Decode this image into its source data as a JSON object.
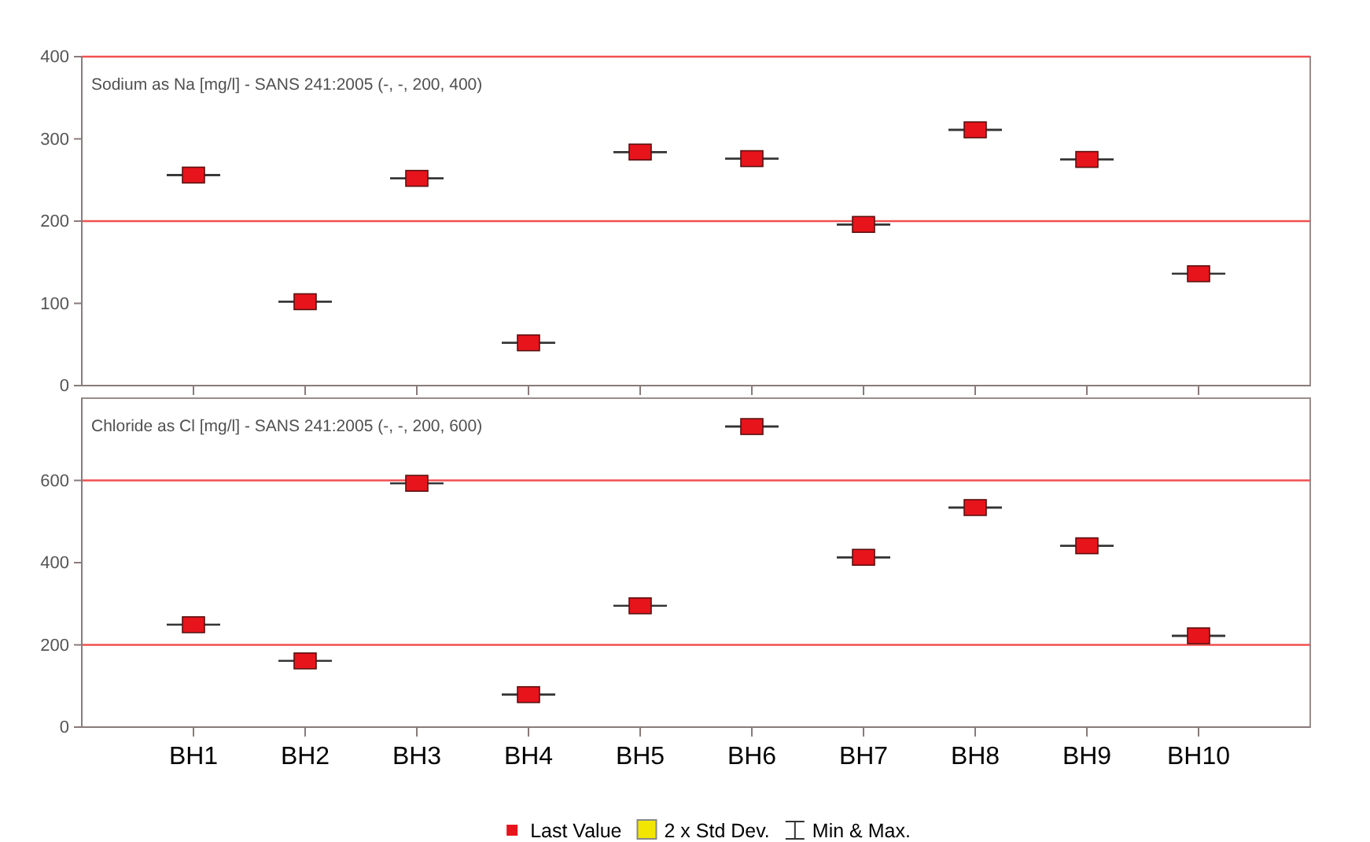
{
  "chart_data": [
    {
      "type": "scatter",
      "title": "Sodium as Na [mg/l] - SANS 241:2005 (-, -, 200, 400)",
      "categories": [
        null,
        null,
        null,
        null,
        null,
        null,
        null,
        null,
        null,
        null
      ],
      "ylim": [
        0,
        400
      ],
      "yticks": [
        0,
        100,
        200,
        300,
        400
      ],
      "series": [
        {
          "color": "#e8141c",
          "marker": "square",
          "values": [
            256,
            102,
            252,
            52,
            284,
            276,
            196,
            311,
            275,
            136
          ],
          "errors": [
            0,
            0,
            0,
            0,
            0,
            0,
            0,
            0,
            0,
            0
          ]
        }
      ],
      "ref_lines": [
        {
          "axis": "y",
          "value": 200,
          "color": "#f05050"
        },
        {
          "axis": "y",
          "value": 400,
          "color": "#f05050"
        }
      ]
    },
    {
      "type": "scatter",
      "title": "Chloride as Cl [mg/l] - SANS 241:2005 (-, -, 200, 600)",
      "categories": [
        "BH1",
        "BH2",
        "BH3",
        "BH4",
        "BH5",
        "BH6",
        "BH7",
        "BH8",
        "BH9",
        "BH10"
      ],
      "ylim": [
        0,
        800
      ],
      "yticks": [
        0,
        200,
        400,
        600
      ],
      "legend": "bottom",
      "series": [
        {
          "name": "Last Value",
          "color": "#e8141c",
          "marker": "square",
          "values": [
            249,
            161,
            593,
            79,
            295,
            731,
            413,
            534,
            441,
            222
          ],
          "errors": [
            0,
            0,
            0,
            0,
            0,
            0,
            0,
            0,
            0,
            0
          ]
        },
        {
          "name": "2 x Std Dev.",
          "color": "#f2e600",
          "values": [
            null,
            null,
            null,
            null,
            null,
            null,
            null,
            null,
            null,
            null
          ]
        },
        {
          "name": "Min & Max.",
          "color": "#333333",
          "marker": "none",
          "values": [
            null,
            null,
            null,
            null,
            null,
            null,
            null,
            null,
            null,
            null
          ]
        }
      ],
      "ref_lines": [
        {
          "axis": "y",
          "value": 200,
          "color": "#f05050"
        },
        {
          "axis": "y",
          "value": 600,
          "color": "#f05050"
        }
      ]
    }
  ]
}
